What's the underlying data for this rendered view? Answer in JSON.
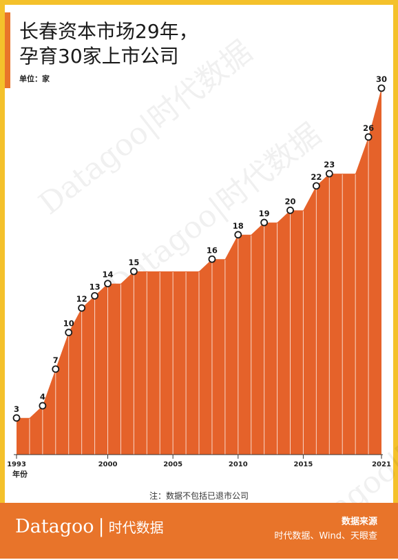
{
  "header": {
    "title_line1": "长春资本市场29年，",
    "title_line2": "孕育30家上市公司",
    "unit_label": "单位：家"
  },
  "watermark_text": "Datagoo|时代数据",
  "footer": {
    "brand_latin": "Datagoo",
    "brand_sep": "|",
    "brand_cn": "时代数据",
    "source_title": "数据来源",
    "source_text": "时代数据、Wind、天眼查"
  },
  "note": "注：数据不包括已退市公司",
  "colors": {
    "accent": "#e8742a",
    "frame": "#f4c12b",
    "area": "#e5622a"
  },
  "chart_data": {
    "type": "area",
    "x_unit_label": "年份",
    "x": [
      1993,
      1994,
      1995,
      1996,
      1997,
      1998,
      1999,
      2000,
      2001,
      2002,
      2003,
      2004,
      2005,
      2006,
      2007,
      2008,
      2009,
      2010,
      2011,
      2012,
      2013,
      2014,
      2015,
      2016,
      2017,
      2018,
      2019,
      2020,
      2021
    ],
    "values": [
      3,
      3,
      4,
      7,
      10,
      12,
      13,
      14,
      14,
      15,
      15,
      15,
      15,
      15,
      15,
      16,
      16,
      18,
      18,
      19,
      19,
      20,
      20,
      22,
      23,
      23,
      23,
      26,
      30
    ],
    "labeled_points": [
      {
        "year": 1993,
        "value": 3,
        "label": "3"
      },
      {
        "year": 1995,
        "value": 4,
        "label": "4"
      },
      {
        "year": 1996,
        "value": 7,
        "label": "7"
      },
      {
        "year": 1997,
        "value": 10,
        "label": "10"
      },
      {
        "year": 1998,
        "value": 12,
        "label": "12"
      },
      {
        "year": 1999,
        "value": 13,
        "label": "13"
      },
      {
        "year": 2000,
        "value": 14,
        "label": "14"
      },
      {
        "year": 2002,
        "value": 15,
        "label": "15"
      },
      {
        "year": 2008,
        "value": 16,
        "label": "16"
      },
      {
        "year": 2010,
        "value": 18,
        "label": "18"
      },
      {
        "year": 2012,
        "value": 19,
        "label": "19"
      },
      {
        "year": 2014,
        "value": 20,
        "label": "20"
      },
      {
        "year": 2016,
        "value": 22,
        "label": "22"
      },
      {
        "year": 2017,
        "value": 23,
        "label": "23"
      },
      {
        "year": 2020,
        "value": 26,
        "label": "26"
      },
      {
        "year": 2021,
        "value": 30,
        "label": "30"
      }
    ],
    "x_ticks": [
      {
        "value": 1993,
        "label": "1993"
      },
      {
        "value": 2000,
        "label": "2000"
      },
      {
        "value": 2005,
        "label": "2005"
      },
      {
        "value": 2010,
        "label": "2010"
      },
      {
        "value": 2015,
        "label": "2015"
      },
      {
        "value": 2021,
        "label": "2021"
      }
    ],
    "xlim": [
      1993,
      2021
    ],
    "ylim": [
      0,
      30
    ],
    "grid": false,
    "legend": "none"
  }
}
